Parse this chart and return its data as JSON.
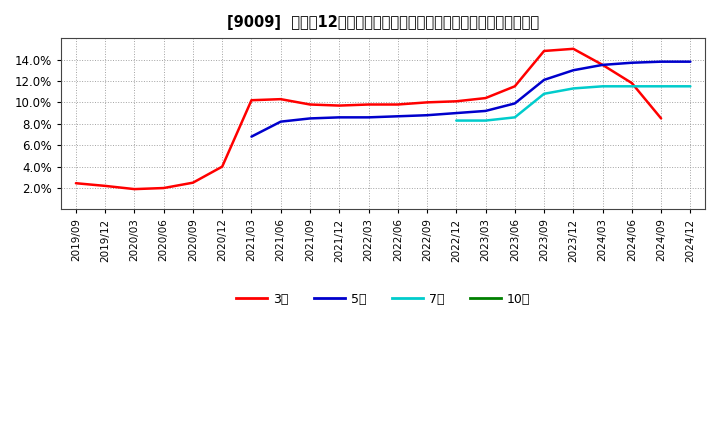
{
  "title": "[9009]  売上高12か月移動合計の対前年同期増減率の標準偏差の推移",
  "ylim": [
    0.0,
    0.16
  ],
  "yticks": [
    0.02,
    0.04,
    0.06,
    0.08,
    0.1,
    0.12,
    0.14
  ],
  "ytick_labels": [
    "2.0%",
    "4.0%",
    "6.0%",
    "8.0%",
    "10.0%",
    "12.0%",
    "14.0%"
  ],
  "background_color": "#ffffff",
  "grid_color": "#999999",
  "x_labels": [
    "2019/09",
    "2019/12",
    "2020/03",
    "2020/06",
    "2020/09",
    "2020/12",
    "2021/03",
    "2021/06",
    "2021/09",
    "2021/12",
    "2022/03",
    "2022/06",
    "2022/09",
    "2022/12",
    "2023/03",
    "2023/06",
    "2023/09",
    "2023/12",
    "2024/03",
    "2024/06",
    "2024/09",
    "2024/12"
  ],
  "series": [
    {
      "name": "3年",
      "color": "#ff0000",
      "x": [
        0,
        1,
        2,
        3,
        4,
        5,
        6,
        7,
        8,
        9,
        10,
        11,
        12,
        13,
        14,
        15,
        16,
        17,
        18,
        19,
        20
      ],
      "y": [
        0.0245,
        0.022,
        0.019,
        0.02,
        0.025,
        0.04,
        0.102,
        0.103,
        0.098,
        0.097,
        0.098,
        0.098,
        0.1,
        0.101,
        0.104,
        0.115,
        0.148,
        0.15,
        0.135,
        0.118,
        0.085
      ]
    },
    {
      "name": "5年",
      "color": "#0000cc",
      "x": [
        6,
        7,
        8,
        9,
        10,
        11,
        12,
        13,
        14,
        15,
        16,
        17,
        18,
        19,
        20,
        21
      ],
      "y": [
        0.068,
        0.082,
        0.085,
        0.086,
        0.086,
        0.087,
        0.088,
        0.09,
        0.092,
        0.099,
        0.121,
        0.13,
        0.135,
        0.137,
        0.138,
        0.138
      ]
    },
    {
      "name": "7年",
      "color": "#00cccc",
      "x": [
        13,
        14,
        15,
        16,
        17,
        18,
        19,
        20,
        21
      ],
      "y": [
        0.083,
        0.083,
        0.086,
        0.108,
        0.113,
        0.115,
        0.115,
        0.115,
        0.115
      ]
    },
    {
      "name": "10年",
      "color": "#008000",
      "x": [],
      "y": []
    }
  ],
  "legend_entries": [
    "3年",
    "5年",
    "7年",
    "10年"
  ],
  "legend_colors": [
    "#ff0000",
    "#0000cc",
    "#00cccc",
    "#008000"
  ]
}
